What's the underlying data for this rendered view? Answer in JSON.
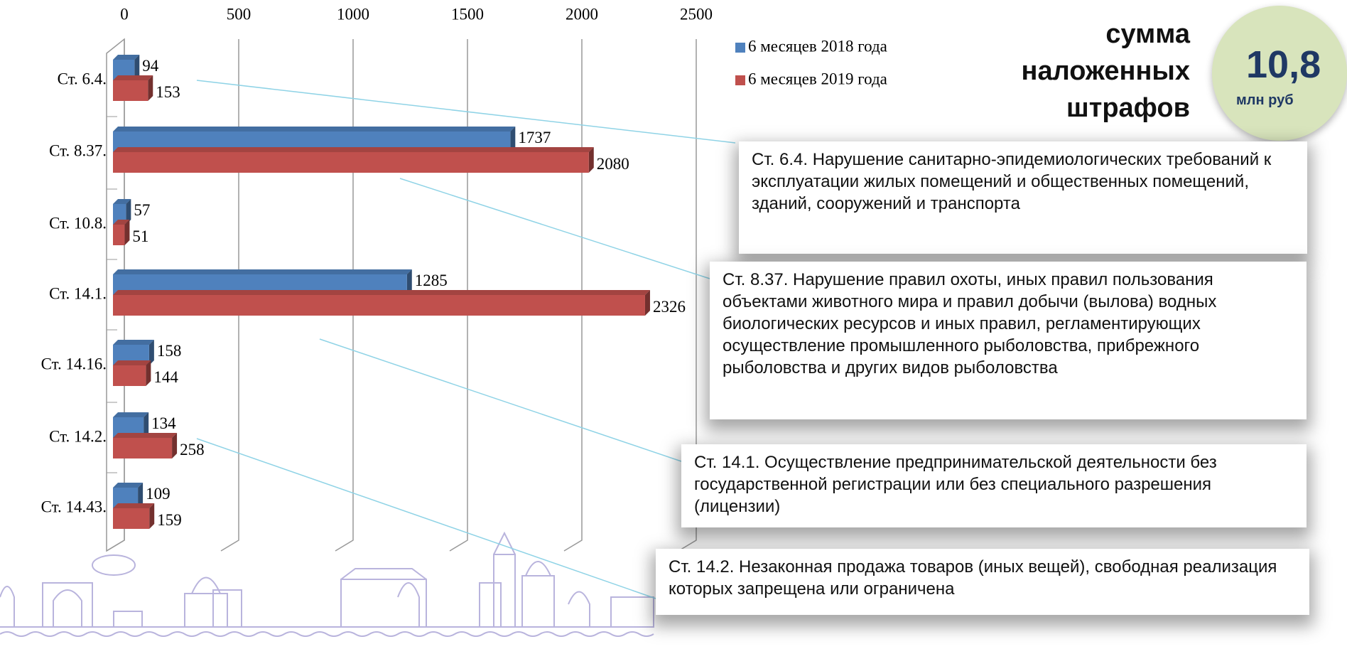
{
  "chart_data": {
    "type": "bar",
    "orientation": "horizontal",
    "categories": [
      "Ст. 6.4.",
      "Ст. 8.37.",
      "Ст. 10.8.",
      "Ст. 14.1.",
      "Ст. 14.16.",
      "Ст. 14.2.",
      "Ст. 14.43."
    ],
    "series": [
      {
        "name": "6 месяцев 2018 года",
        "color": "#4f81bd",
        "values": [
          94,
          1737,
          57,
          1285,
          158,
          134,
          109
        ]
      },
      {
        "name": "6 месяцев 2019 года",
        "color": "#c0504d",
        "values": [
          153,
          2080,
          51,
          2326,
          144,
          258,
          159
        ]
      }
    ],
    "xlim": [
      0,
      2500
    ],
    "xticks": [
      0,
      500,
      1000,
      1500,
      2000,
      2500
    ],
    "grid": true,
    "legend": "top-right"
  },
  "summary": {
    "lines": [
      "сумма",
      "наложенных",
      "штрафов"
    ],
    "value": "10,8",
    "unit": "млн руб"
  },
  "notes": [
    "Ст. 6.4. Нарушение санитарно-эпидемиологических требований к эксплуатации жилых помещений и общественных помещений, зданий, сооружений и транспорта",
    "Ст. 8.37. Нарушение правил охоты, иных правил пользования объектами животного мира и правил добычи (вылова) водных биологических ресурсов и иных правил, регламентирующих осуществление промышленного рыболовства, прибрежного рыболовства и других видов рыболовства",
    "Ст. 14.1. Осуществление предпринимательской деятельности без государственной регистрации или без специального разрешения (лицензии)",
    "Ст. 14.2. Незаконная продажа товаров (иных вещей), свободная реализация которых запрещена или ограничена"
  ]
}
